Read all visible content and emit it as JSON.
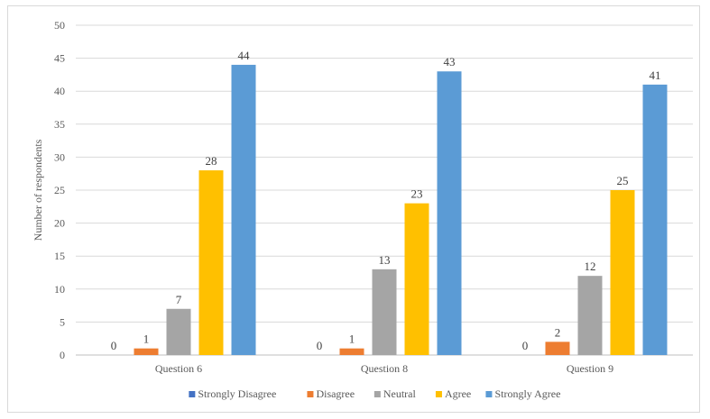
{
  "chart_data": {
    "type": "bar",
    "title": "",
    "xlabel": "",
    "ylabel": "Number of respondents",
    "ylim": [
      0,
      50
    ],
    "ytick_step": 5,
    "grid": true,
    "legend_position": "bottom",
    "categories": [
      "Question 6",
      "Question 8",
      "Question 9"
    ],
    "series": [
      {
        "name": "Strongly Disagree",
        "color": "#4472C4",
        "values": [
          0,
          0,
          0
        ]
      },
      {
        "name": "Disagree",
        "color": "#ED7D31",
        "values": [
          1,
          1,
          2
        ]
      },
      {
        "name": "Neutral",
        "color": "#A5A5A5",
        "values": [
          7,
          13,
          12
        ]
      },
      {
        "name": "Agree",
        "color": "#FFC000",
        "values": [
          28,
          23,
          25
        ]
      },
      {
        "name": "Strongly Agree",
        "color": "#5B9BD5",
        "values": [
          44,
          43,
          41
        ]
      }
    ]
  }
}
